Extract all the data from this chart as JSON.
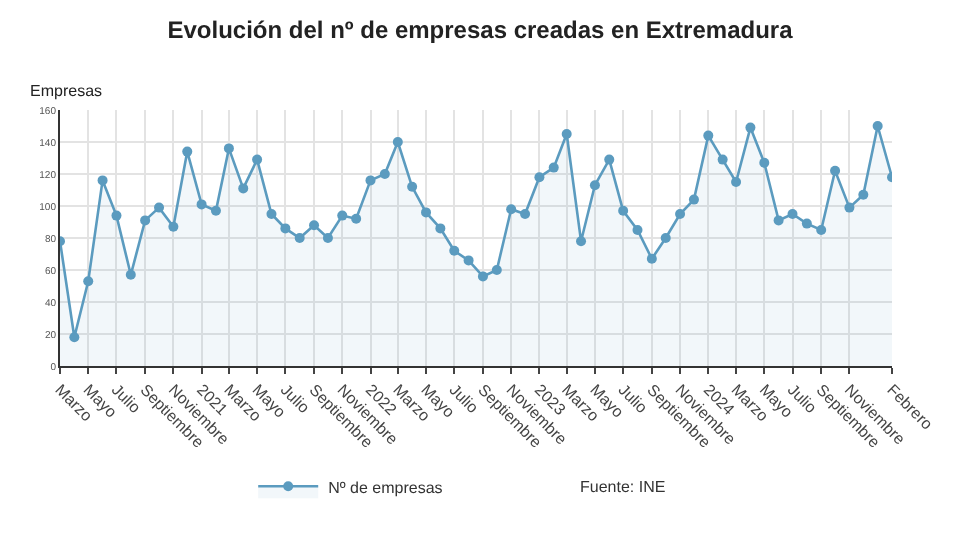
{
  "chart_data": {
    "type": "area",
    "title": "Evolución del nº de empresas creadas en Extremadura",
    "ylabel": "Empresas",
    "annotations": [
      "Fuente: INE"
    ],
    "x": [
      "2020-03",
      "2020-04",
      "2020-05",
      "2020-06",
      "2020-07",
      "2020-08",
      "2020-09",
      "2020-10",
      "2020-11",
      "2020-12",
      "2021-01",
      "2021-02",
      "2021-03",
      "2021-04",
      "2021-05",
      "2021-06",
      "2021-07",
      "2021-08",
      "2021-09",
      "2021-10",
      "2021-11",
      "2021-12",
      "2022-01",
      "2022-02",
      "2022-03",
      "2022-04",
      "2022-05",
      "2022-06",
      "2022-07",
      "2022-08",
      "2022-09",
      "2022-10",
      "2022-11",
      "2022-12",
      "2023-01",
      "2023-02",
      "2023-03",
      "2023-04",
      "2023-05",
      "2023-06",
      "2023-07",
      "2023-08",
      "2023-09",
      "2023-10",
      "2023-11",
      "2023-12",
      "2024-01",
      "2024-02",
      "2024-03",
      "2024-04",
      "2024-05",
      "2024-06",
      "2024-07",
      "2024-08",
      "2024-09",
      "2024-10",
      "2024-11",
      "2024-12",
      "2025-01",
      "2025-02"
    ],
    "series": [
      {
        "name": "Nº de empresas",
        "color": "#5b9bbf",
        "values": [
          78,
          18,
          53,
          116,
          94,
          57,
          91,
          99,
          87,
          134,
          101,
          97,
          136,
          111,
          129,
          95,
          86,
          80,
          88,
          80,
          94,
          92,
          116,
          120,
          140,
          112,
          96,
          86,
          72,
          66,
          56,
          60,
          98,
          95,
          118,
          124,
          145,
          78,
          113,
          129,
          97,
          85,
          67,
          80,
          95,
          104,
          144,
          129,
          115,
          149,
          127,
          91,
          95,
          89,
          85,
          122,
          99,
          107,
          150,
          118
        ]
      }
    ],
    "xlim": [
      "2020-03",
      "2025-02"
    ],
    "xticks": [
      {
        "value": "2020-03",
        "label": "Marzo"
      },
      {
        "value": "2020-05",
        "label": "Mayo"
      },
      {
        "value": "2020-07",
        "label": "Julio"
      },
      {
        "value": "2020-09",
        "label": "Septiembre"
      },
      {
        "value": "2020-11",
        "label": "Noviembre"
      },
      {
        "value": "2021-01",
        "label": "2021"
      },
      {
        "value": "2021-03",
        "label": "Marzo"
      },
      {
        "value": "2021-05",
        "label": "Mayo"
      },
      {
        "value": "2021-07",
        "label": "Julio"
      },
      {
        "value": "2021-09",
        "label": "Septiembre"
      },
      {
        "value": "2021-11",
        "label": "Noviembre"
      },
      {
        "value": "2022-01",
        "label": "2022"
      },
      {
        "value": "2022-03",
        "label": "Marzo"
      },
      {
        "value": "2022-05",
        "label": "Mayo"
      },
      {
        "value": "2022-07",
        "label": "Julio"
      },
      {
        "value": "2022-09",
        "label": "Septiembre"
      },
      {
        "value": "2022-11",
        "label": "Noviembre"
      },
      {
        "value": "2023-01",
        "label": "2023"
      },
      {
        "value": "2023-03",
        "label": "Marzo"
      },
      {
        "value": "2023-05",
        "label": "Mayo"
      },
      {
        "value": "2023-07",
        "label": "Julio"
      },
      {
        "value": "2023-09",
        "label": "Septiembre"
      },
      {
        "value": "2023-11",
        "label": "Noviembre"
      },
      {
        "value": "2024-01",
        "label": "2024"
      },
      {
        "value": "2024-03",
        "label": "Marzo"
      },
      {
        "value": "2024-05",
        "label": "Mayo"
      },
      {
        "value": "2024-07",
        "label": "Julio"
      },
      {
        "value": "2024-09",
        "label": "Septiembre"
      },
      {
        "value": "2024-11",
        "label": "Noviembre"
      },
      {
        "value": "2025-02",
        "label": "Febrero"
      }
    ],
    "ylim": [
      0,
      160
    ],
    "yticks": [
      0,
      20,
      40,
      60,
      80,
      100,
      120,
      140,
      160
    ],
    "grid": true,
    "legend": "bottom",
    "marker": "circle",
    "line_style": "solid"
  }
}
